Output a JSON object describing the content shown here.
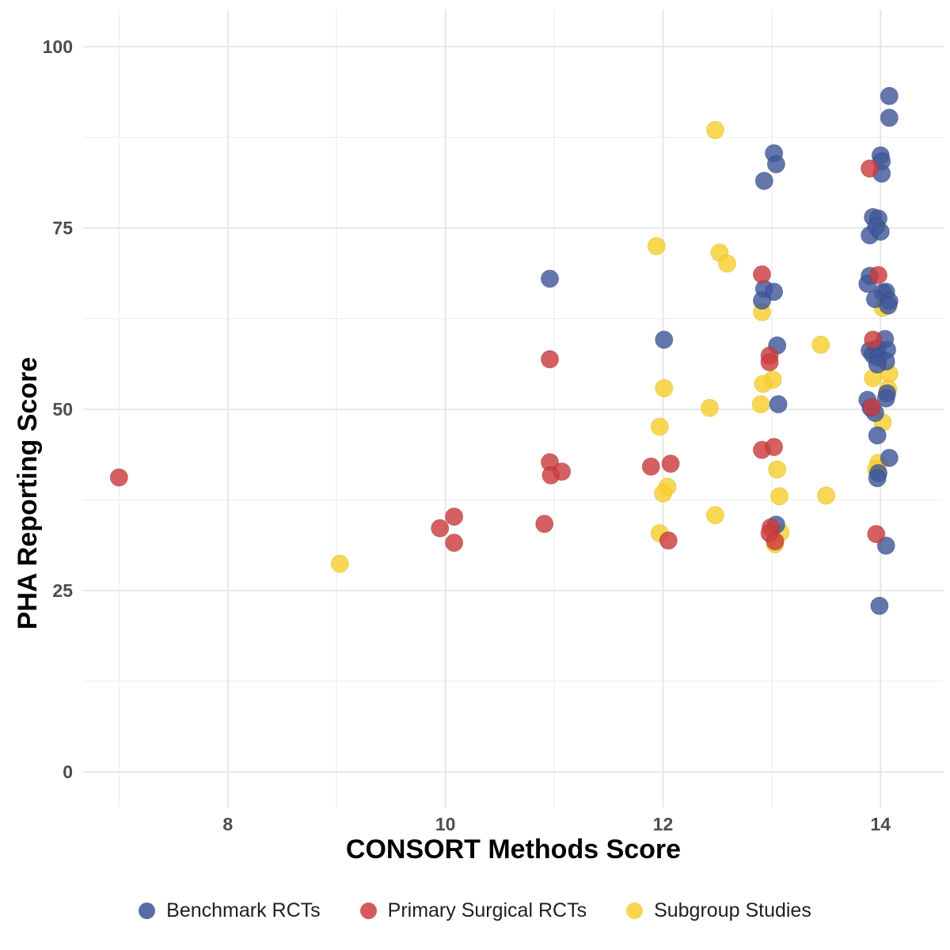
{
  "figure": {
    "background": "#ffffff"
  },
  "chart_data": {
    "type": "scatter",
    "title": "",
    "xlabel": "CONSORT Methods Score",
    "ylabel": "PHA Reporting Score",
    "x_range": [
      6.67,
      14.58
    ],
    "y_range": [
      -4.91,
      105.13
    ],
    "x_ticks": [
      8,
      10,
      12,
      14
    ],
    "x_minor_ticks": [
      7,
      9,
      11,
      13
    ],
    "y_ticks": [
      0,
      25,
      50,
      75,
      100
    ],
    "y_minor_ticks": [
      12.5,
      37.5,
      62.5,
      87.5
    ],
    "grid": true,
    "legend_position": "bottom-center",
    "point_radius": 11,
    "point_opacity": 0.82,
    "series": [
      {
        "name": "Benchmark RCTs",
        "color": "#41599A",
        "edge_color": "#2B3F77",
        "z": 2,
        "points": [
          [
            10.96,
            68.0
          ],
          [
            12.01,
            59.6
          ],
          [
            12.93,
            66.6
          ],
          [
            13.02,
            66.2
          ],
          [
            12.91,
            65.0
          ],
          [
            13.05,
            58.8
          ],
          [
            13.06,
            50.7
          ],
          [
            13.04,
            34.1
          ],
          [
            13.02,
            85.3
          ],
          [
            13.04,
            83.8
          ],
          [
            12.93,
            81.5
          ],
          [
            14.08,
            93.2
          ],
          [
            14.08,
            90.2
          ],
          [
            14.0,
            85.0
          ],
          [
            14.01,
            84.2
          ],
          [
            14.01,
            82.5
          ],
          [
            13.93,
            76.5
          ],
          [
            13.98,
            76.3
          ],
          [
            13.96,
            75.2
          ],
          [
            13.9,
            74.0
          ],
          [
            14.0,
            74.5
          ],
          [
            13.9,
            68.4
          ],
          [
            13.88,
            67.3
          ],
          [
            14.05,
            66.2
          ],
          [
            14.02,
            66.1
          ],
          [
            13.95,
            65.2
          ],
          [
            14.08,
            64.9
          ],
          [
            14.07,
            64.3
          ],
          [
            13.9,
            58.1
          ],
          [
            13.97,
            58.4
          ],
          [
            14.06,
            58.2
          ],
          [
            13.93,
            57.5
          ],
          [
            13.98,
            57.1
          ],
          [
            14.05,
            56.6
          ],
          [
            13.97,
            56.2
          ],
          [
            14.04,
            59.7
          ],
          [
            14.06,
            52.2
          ],
          [
            14.05,
            51.5
          ],
          [
            13.88,
            51.3
          ],
          [
            13.91,
            50.2
          ],
          [
            13.95,
            49.5
          ],
          [
            13.97,
            46.4
          ],
          [
            14.08,
            43.3
          ],
          [
            13.98,
            41.2
          ],
          [
            13.97,
            40.5
          ],
          [
            14.05,
            31.2
          ],
          [
            13.99,
            22.9
          ]
        ]
      },
      {
        "name": "Primary Surgical RCTs",
        "color": "#CC3D40",
        "edge_color": "#A02C2F",
        "z": 3,
        "points": [
          [
            7.0,
            40.6
          ],
          [
            9.95,
            33.6
          ],
          [
            10.08,
            35.2
          ],
          [
            10.08,
            31.6
          ],
          [
            10.91,
            34.2
          ],
          [
            10.96,
            56.9
          ],
          [
            10.96,
            42.7
          ],
          [
            10.97,
            40.9
          ],
          [
            11.07,
            41.4
          ],
          [
            11.89,
            42.1
          ],
          [
            12.07,
            42.5
          ],
          [
            12.05,
            31.9
          ],
          [
            12.91,
            68.6
          ],
          [
            12.91,
            44.4
          ],
          [
            13.02,
            44.8
          ],
          [
            12.98,
            57.4
          ],
          [
            12.98,
            56.5
          ],
          [
            12.99,
            33.7
          ],
          [
            12.98,
            32.9
          ],
          [
            13.03,
            31.8
          ],
          [
            13.9,
            83.2
          ],
          [
            13.98,
            68.5
          ],
          [
            13.93,
            59.6
          ],
          [
            13.92,
            50.3
          ],
          [
            13.96,
            32.8
          ]
        ]
      },
      {
        "name": "Subgroup Studies",
        "color": "#F6CE2E",
        "edge_color": "#D9B520",
        "z": 1,
        "points": [
          [
            9.03,
            28.7
          ],
          [
            12.48,
            88.5
          ],
          [
            11.94,
            72.5
          ],
          [
            12.52,
            71.6
          ],
          [
            12.59,
            70.1
          ],
          [
            12.91,
            63.4
          ],
          [
            13.01,
            54.1
          ],
          [
            12.92,
            53.5
          ],
          [
            12.01,
            52.9
          ],
          [
            12.43,
            50.2
          ],
          [
            12.9,
            50.7
          ],
          [
            11.97,
            47.6
          ],
          [
            12.04,
            39.3
          ],
          [
            12.0,
            38.4
          ],
          [
            12.48,
            35.4
          ],
          [
            11.97,
            32.9
          ],
          [
            13.05,
            41.7
          ],
          [
            13.07,
            38.0
          ],
          [
            13.5,
            38.1
          ],
          [
            13.45,
            58.9
          ],
          [
            13.08,
            33.0
          ],
          [
            13.03,
            31.4
          ],
          [
            14.02,
            64.0
          ],
          [
            13.93,
            54.3
          ],
          [
            14.08,
            54.9
          ],
          [
            14.07,
            52.8
          ],
          [
            14.02,
            48.2
          ],
          [
            13.98,
            42.6
          ],
          [
            13.96,
            41.7
          ]
        ]
      }
    ],
    "grid_major_color": "#E4E4E4",
    "grid_minor_color": "#EDEDED"
  },
  "legend": {
    "items": [
      {
        "label": "Benchmark RCTs",
        "color": "#5A6CA6"
      },
      {
        "label": "Primary Surgical RCTs",
        "color": "#D45A5C"
      },
      {
        "label": "Subgroup Studies",
        "color": "#F7D64B"
      }
    ]
  }
}
